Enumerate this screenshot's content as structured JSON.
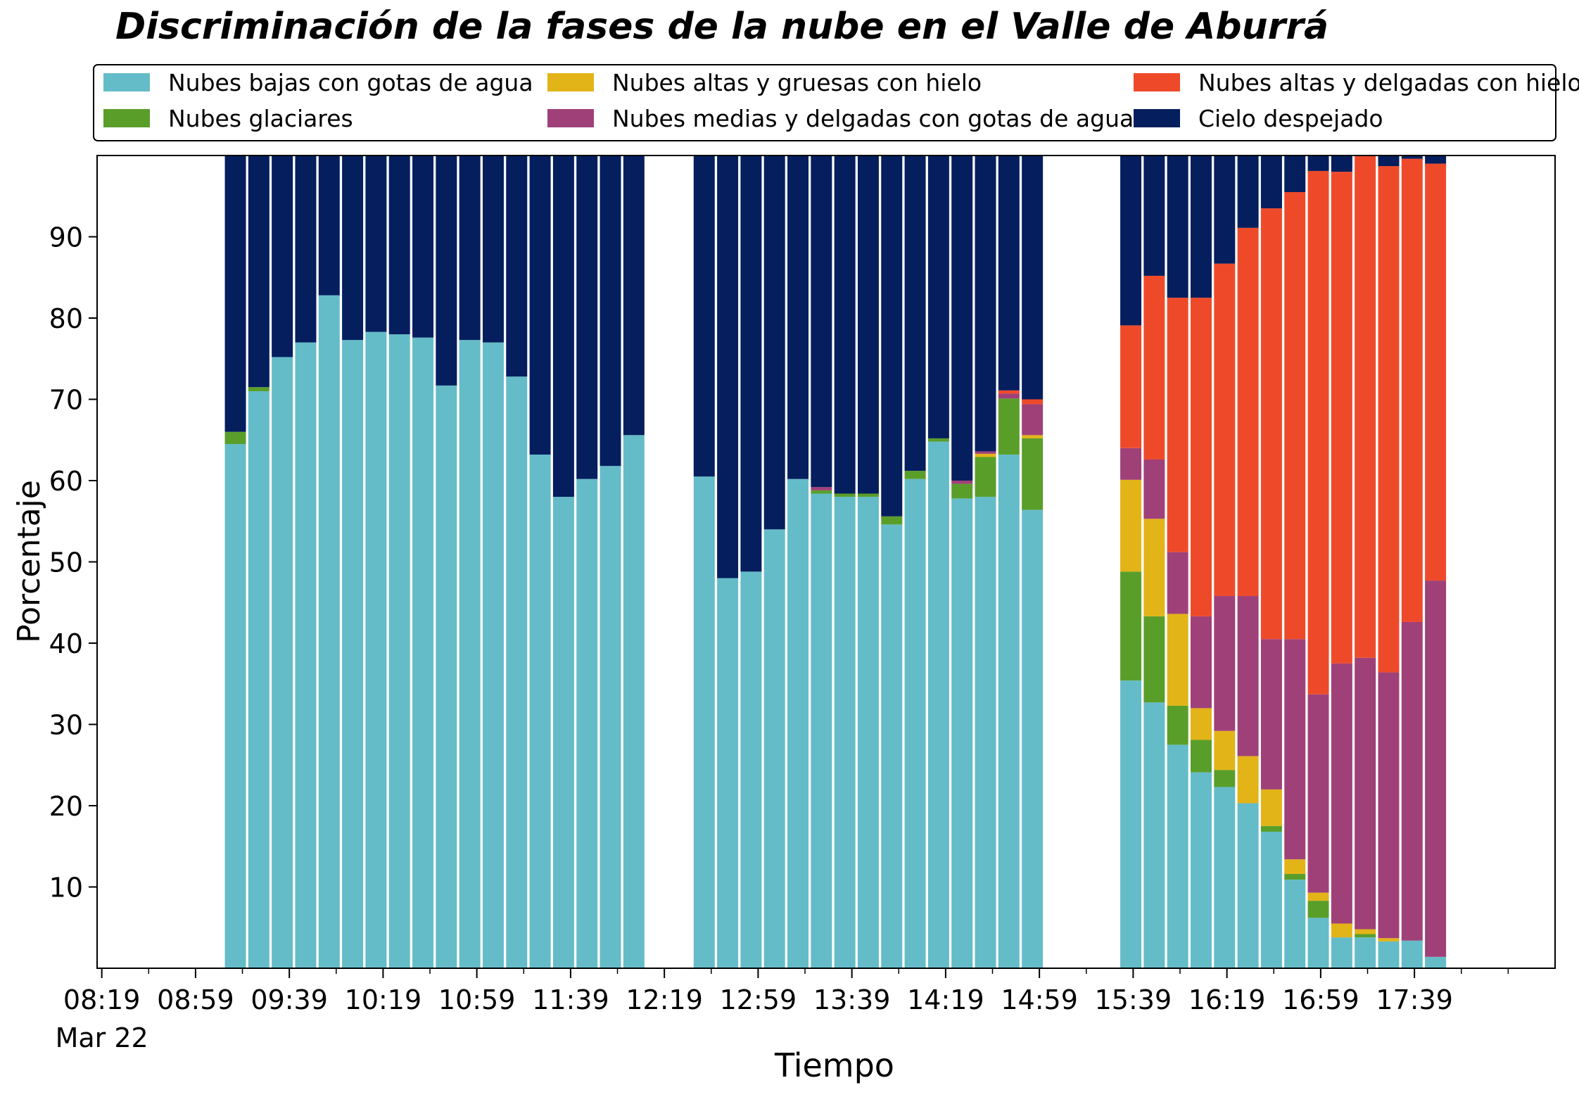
{
  "chart_data": {
    "type": "bar",
    "stacked": true,
    "title": "Discriminación de la fases de la nube en el Valle de Aburrá",
    "xlabel": "Tiempo",
    "ylabel": "Porcentaje",
    "ylim": [
      0,
      100
    ],
    "yticks": [
      10,
      20,
      30,
      40,
      50,
      60,
      70,
      80,
      90
    ],
    "x_unit": "minutes after 08:19 on Mar 22",
    "x_range": [
      -2,
      620
    ],
    "x_ticks": [
      {
        "x": 0,
        "label": "08:19",
        "sublabel": "Mar 22"
      },
      {
        "x": 40,
        "label": "08:59"
      },
      {
        "x": 80,
        "label": "09:39"
      },
      {
        "x": 120,
        "label": "10:19"
      },
      {
        "x": 160,
        "label": "10:59"
      },
      {
        "x": 200,
        "label": "11:39"
      },
      {
        "x": 240,
        "label": "12:19"
      },
      {
        "x": 280,
        "label": "12:59"
      },
      {
        "x": 320,
        "label": "13:39"
      },
      {
        "x": 360,
        "label": "14:19"
      },
      {
        "x": 400,
        "label": "14:59"
      },
      {
        "x": 440,
        "label": "15:39"
      },
      {
        "x": 480,
        "label": "16:19"
      },
      {
        "x": 520,
        "label": "16:59"
      },
      {
        "x": 560,
        "label": "17:39"
      }
    ],
    "minor_ticks": [
      20,
      60,
      100,
      140,
      180,
      220,
      260,
      300,
      340,
      380,
      420,
      460,
      500,
      540,
      580,
      600
    ],
    "bar_width": 9,
    "grid": false,
    "legend": {
      "placement": "top",
      "columns": 3
    },
    "series": [
      {
        "name": "Nubes bajas con gotas de agua",
        "color": "#64bcc8"
      },
      {
        "name": "Nubes glaciares",
        "color": "#5a9e2a"
      },
      {
        "name": "Nubes altas y gruesas con hielo",
        "color": "#e2b418"
      },
      {
        "name": "Nubes medias y delgadas con gotas de agua",
        "color": "#a04078"
      },
      {
        "name": "Nubes altas y delgadas con hielo",
        "color": "#ee4a2a"
      },
      {
        "name": "Cielo despejado",
        "color": "#041e5e"
      }
    ],
    "bars": [
      {
        "x": 57,
        "values": [
          64.5,
          1.5,
          0,
          0,
          0,
          34
        ]
      },
      {
        "x": 67,
        "values": [
          71,
          0.5,
          0,
          0,
          0,
          28.5
        ]
      },
      {
        "x": 77,
        "values": [
          75.2,
          0,
          0,
          0,
          0,
          24.8
        ]
      },
      {
        "x": 87,
        "values": [
          77,
          0,
          0,
          0,
          0,
          23
        ]
      },
      {
        "x": 97,
        "values": [
          82.8,
          0,
          0,
          0,
          0,
          17.2
        ]
      },
      {
        "x": 107,
        "values": [
          77.3,
          0,
          0,
          0,
          0,
          22.7
        ]
      },
      {
        "x": 117,
        "values": [
          78.3,
          0,
          0,
          0,
          0,
          21.7
        ]
      },
      {
        "x": 127,
        "values": [
          78,
          0,
          0,
          0,
          0,
          22
        ]
      },
      {
        "x": 137,
        "values": [
          77.6,
          0,
          0,
          0,
          0,
          22.4
        ]
      },
      {
        "x": 147,
        "values": [
          71.7,
          0,
          0,
          0,
          0,
          28.3
        ]
      },
      {
        "x": 157,
        "values": [
          77.3,
          0,
          0,
          0,
          0,
          22.7
        ]
      },
      {
        "x": 167,
        "values": [
          77,
          0,
          0,
          0,
          0,
          23
        ]
      },
      {
        "x": 177,
        "values": [
          72.8,
          0,
          0,
          0,
          0,
          27.2
        ]
      },
      {
        "x": 187,
        "values": [
          63.2,
          0,
          0,
          0,
          0,
          36.8
        ]
      },
      {
        "x": 197,
        "values": [
          58,
          0,
          0,
          0,
          0,
          42
        ]
      },
      {
        "x": 207,
        "values": [
          60.2,
          0,
          0,
          0,
          0,
          39.8
        ]
      },
      {
        "x": 217,
        "values": [
          61.8,
          0,
          0,
          0,
          0,
          38.2
        ]
      },
      {
        "x": 227,
        "values": [
          65.6,
          0,
          0,
          0,
          0,
          34.4
        ]
      },
      {
        "x": 257,
        "values": [
          60.5,
          0,
          0,
          0,
          0,
          39.5
        ]
      },
      {
        "x": 267,
        "values": [
          48,
          0,
          0,
          0,
          0,
          52
        ]
      },
      {
        "x": 277,
        "values": [
          48.8,
          0,
          0,
          0,
          0,
          51.2
        ]
      },
      {
        "x": 287,
        "values": [
          54,
          0,
          0,
          0,
          0,
          46
        ]
      },
      {
        "x": 297,
        "values": [
          60.2,
          0,
          0,
          0,
          0,
          39.8
        ]
      },
      {
        "x": 307,
        "values": [
          58.4,
          0.4,
          0,
          0.4,
          0,
          40.8
        ]
      },
      {
        "x": 317,
        "values": [
          58,
          0.4,
          0,
          0,
          0,
          41.6
        ]
      },
      {
        "x": 327,
        "values": [
          58,
          0.4,
          0,
          0,
          0,
          41.6
        ]
      },
      {
        "x": 337,
        "values": [
          54.6,
          1,
          0,
          0,
          0,
          44.4
        ]
      },
      {
        "x": 347,
        "values": [
          60.2,
          1,
          0,
          0,
          0,
          38.8
        ]
      },
      {
        "x": 357,
        "values": [
          64.8,
          0.4,
          0,
          0,
          0,
          34.8
        ]
      },
      {
        "x": 367,
        "values": [
          57.8,
          1.8,
          0,
          0.4,
          0,
          40
        ]
      },
      {
        "x": 377,
        "values": [
          58,
          4.9,
          0.4,
          0.3,
          0,
          36.4
        ]
      },
      {
        "x": 387,
        "values": [
          63.2,
          6.9,
          0,
          0.6,
          0.4,
          28.9
        ]
      },
      {
        "x": 397,
        "values": [
          56.4,
          8.8,
          0.4,
          3.8,
          0.6,
          30
        ]
      },
      {
        "x": 439,
        "values": [
          35.4,
          13.4,
          11.3,
          3.9,
          15.1,
          20.9
        ]
      },
      {
        "x": 449,
        "values": [
          32.7,
          10.6,
          12,
          7.3,
          22.6,
          14.8
        ]
      },
      {
        "x": 459,
        "values": [
          27.5,
          4.8,
          11.3,
          7.6,
          31.3,
          17.5
        ]
      },
      {
        "x": 469,
        "values": [
          24.1,
          4,
          3.9,
          11.3,
          39.2,
          17.5
        ]
      },
      {
        "x": 479,
        "values": [
          22.3,
          2.1,
          4.8,
          16.6,
          40.9,
          13.3
        ]
      },
      {
        "x": 489,
        "values": [
          20.3,
          0,
          5.8,
          19.7,
          45.3,
          8.9
        ]
      },
      {
        "x": 499,
        "values": [
          16.8,
          0.7,
          4.5,
          18.5,
          53,
          6.5
        ]
      },
      {
        "x": 509,
        "values": [
          10.9,
          0.7,
          1.8,
          27.1,
          55,
          4.5
        ]
      },
      {
        "x": 519,
        "values": [
          6.2,
          2.1,
          1,
          24.4,
          64.4,
          1.9
        ]
      },
      {
        "x": 529,
        "values": [
          3.8,
          0,
          1.7,
          32,
          60.5,
          2
        ]
      },
      {
        "x": 539,
        "values": [
          3.8,
          0.4,
          0.6,
          33.4,
          62,
          0
        ]
      },
      {
        "x": 549,
        "values": [
          3.3,
          0,
          0.4,
          32.7,
          62.3,
          1.3
        ]
      },
      {
        "x": 559,
        "values": [
          3.4,
          0,
          0,
          39.2,
          57,
          0.4
        ]
      },
      {
        "x": 569,
        "values": [
          1.4,
          0,
          0,
          46.3,
          51.3,
          1
        ]
      }
    ]
  }
}
